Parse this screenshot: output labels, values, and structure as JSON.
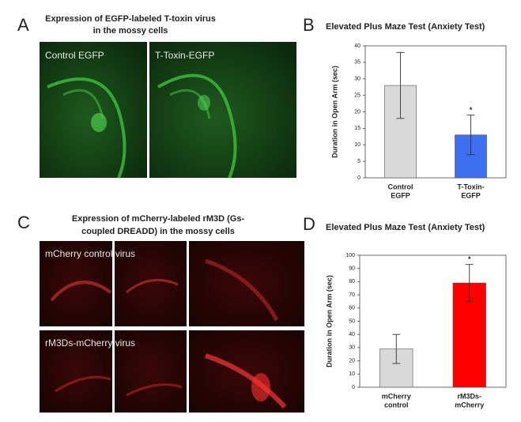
{
  "panels": {
    "A": {
      "letter": "A",
      "title": [
        "Expression of EGFP-labeled T-toxin virus",
        "in the mossy cells"
      ],
      "labels": [
        "Control EGFP",
        "T-Toxin-EGFP"
      ]
    },
    "C": {
      "letter": "C",
      "title": [
        "Expression of mCherry-labeled rM3D (Gs-",
        "coupled DREADD) in the mossy cells"
      ],
      "labels": [
        "mCherry control virus",
        "rM3Ds-mCherry virus"
      ]
    }
  },
  "chart_data": [
    {
      "type": "bar",
      "panel": "B",
      "title": "Elevated Plus Maze Test (Anxiety Test)",
      "y_label": "Duration in Open Arm (sec)",
      "categories": [
        [
          "Control",
          "EGFP"
        ],
        [
          "T-Toxin-",
          "EGFP"
        ]
      ],
      "values": [
        28,
        13
      ],
      "errors": [
        10,
        6
      ],
      "colors": [
        "#d9d9d9",
        "#3d6ff0"
      ],
      "annotation": "*",
      "ylim": [
        0,
        40
      ],
      "yticks": [
        0,
        5,
        10,
        15,
        20,
        25,
        30,
        35,
        40
      ]
    },
    {
      "type": "bar",
      "panel": "D",
      "title": "Elevated Plus Maze Test (Anxiety Test)",
      "y_label": "Duration in Open Arm (sec)",
      "categories": [
        [
          "mCherry",
          "control"
        ],
        [
          "rM3Ds-",
          "mCherry"
        ]
      ],
      "values": [
        29,
        79
      ],
      "errors": [
        11,
        14
      ],
      "colors": [
        "#d9d9d9",
        "#ff0000"
      ],
      "annotation": "*",
      "ylim": [
        0,
        100
      ],
      "yticks": [
        0,
        10,
        20,
        30,
        40,
        50,
        60,
        70,
        80,
        90,
        100
      ]
    }
  ]
}
